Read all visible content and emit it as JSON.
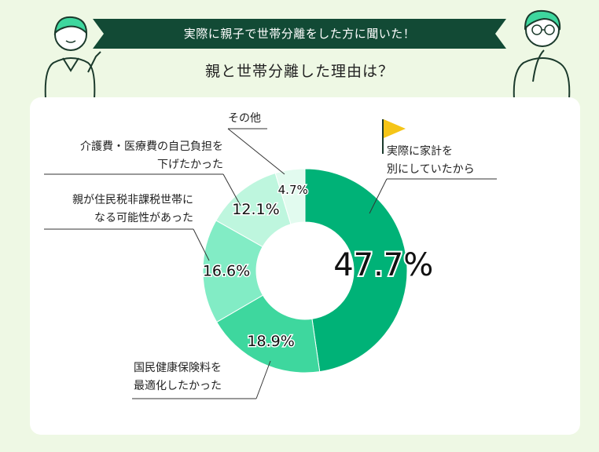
{
  "header": {
    "banner": "実際に親子で世帯分離をした方に聞いた！",
    "title": "親と世帯分離した理由は？"
  },
  "colors": {
    "banner": "#124a35",
    "accent": "#00b277",
    "background": "#eef8e4"
  },
  "chart_data": {
    "type": "donut",
    "title": "親と世帯分離した理由は？",
    "unit": "%",
    "slices": [
      {
        "label": "実際に家計を別にしていたから",
        "value": 47.7,
        "display": "47.7%",
        "color": "#00b277"
      },
      {
        "label": "国民健康保険料を最適化したかった",
        "value": 18.9,
        "display": "18.9%",
        "color": "#3ed79e"
      },
      {
        "label": "親が住民税非課税世帯になる可能性があった",
        "value": 16.6,
        "display": "16.6%",
        "color": "#82ecc5"
      },
      {
        "label": "介護費・医療費の自己負担を下げたかった",
        "value": 12.1,
        "display": "12.1%",
        "color": "#bef6de"
      },
      {
        "label": "その他",
        "value": 4.7,
        "display": "4.7%",
        "color": "#e2fbef"
      }
    ]
  },
  "labels": {
    "s0": [
      "実際に家計を",
      "別にしていたから"
    ],
    "s1": [
      "国民健康保険料を",
      "最適化したかった"
    ],
    "s2": [
      "親が住民税非課税世帯に",
      "なる可能性があった"
    ],
    "s3": [
      "介護費・医療費の自己負担を",
      "下げたかった"
    ],
    "s4": [
      "その他"
    ]
  }
}
